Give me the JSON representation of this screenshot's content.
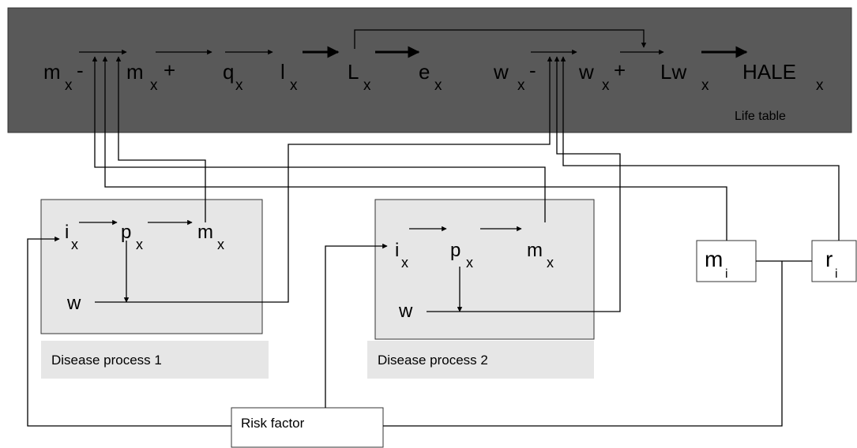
{
  "life_table": {
    "label": "Life table",
    "symbols": [
      {
        "base": "m",
        "sub": "x",
        "suffix": "-"
      },
      {
        "base": "m",
        "sub": "x",
        "suffix": "+"
      },
      {
        "base": "q",
        "sub": "x"
      },
      {
        "base": "l",
        "sub": "x"
      },
      {
        "base": "L",
        "sub": "x"
      },
      {
        "base": "e",
        "sub": "x"
      },
      {
        "base": "w",
        "sub": "x",
        "suffix": "-"
      },
      {
        "base": "w",
        "sub": "x",
        "suffix": "+"
      },
      {
        "base": "Lw",
        "sub": "x"
      },
      {
        "base": "HALE",
        "sub": "x"
      }
    ]
  },
  "disease_processes": [
    {
      "label": "Disease process 1",
      "symbols": [
        {
          "base": "i",
          "sub": "x"
        },
        {
          "base": "p",
          "sub": "x"
        },
        {
          "base": "m",
          "sub": "x"
        },
        {
          "base": "w"
        }
      ]
    },
    {
      "label": "Disease process 2",
      "symbols": [
        {
          "base": "i",
          "sub": "x"
        },
        {
          "base": "p",
          "sub": "x"
        },
        {
          "base": "m",
          "sub": "x"
        },
        {
          "base": "w"
        }
      ]
    }
  ],
  "mortality_box": {
    "base": "m",
    "sub": "i"
  },
  "relative_risk_box": {
    "base": "r",
    "sub": "i"
  },
  "risk_factor": "Risk factor"
}
